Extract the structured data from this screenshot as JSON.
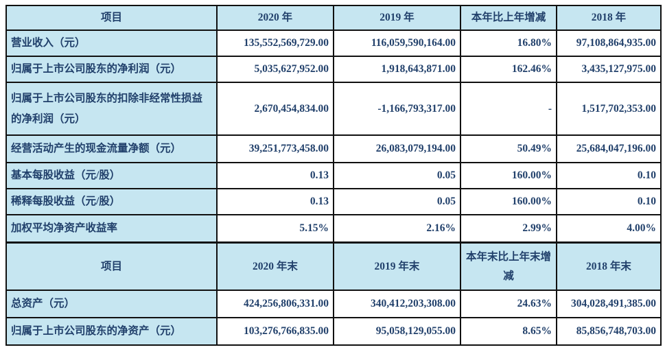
{
  "colors": {
    "cell_fill": "#c6e6f1",
    "data_fill": "#ffffff",
    "border": "#101010",
    "text": "#21406b",
    "page_background": "#ffffff"
  },
  "table1": {
    "headers": [
      "项目",
      "2020 年",
      "2019 年",
      "本年比上年增减",
      "2018 年"
    ],
    "rows": [
      {
        "cells": [
          "营业收入（元）",
          "135,552,569,729.00",
          "116,059,590,164.00",
          "16.80%",
          "97,108,864,935.00"
        ]
      },
      {
        "cells": [
          "归属于上市公司股东的净利润（元）",
          "5,035,627,952.00",
          "1,918,643,871.00",
          "162.46%",
          "3,435,127,975.00"
        ]
      },
      {
        "cells": [
          "归属于上市公司股东的扣除非经常性损益的净利润（元）",
          "2,670,454,834.00",
          "-1,166,793,317.00",
          "-",
          "1,517,702,353.00"
        ]
      },
      {
        "cells": [
          "经营活动产生的现金流量净额（元）",
          "39,251,773,458.00",
          "26,083,079,194.00",
          "50.49%",
          "25,684,047,196.00"
        ]
      },
      {
        "cells": [
          "基本每股收益（元/股）",
          "0.13",
          "0.05",
          "160.00%",
          "0.10"
        ]
      },
      {
        "cells": [
          "稀释每股收益（元/股）",
          "0.13",
          "0.05",
          "160.00%",
          "0.10"
        ]
      },
      {
        "cells": [
          "加权平均净资产收益率",
          "5.15%",
          "2.16%",
          "2.99%",
          "4.00%"
        ]
      }
    ]
  },
  "table2": {
    "headers": [
      "项目",
      "2020 年末",
      "2019 年末",
      "本年末比上年末增减",
      "2018 年末"
    ],
    "rows": [
      {
        "cells": [
          "总资产（元）",
          "424,256,806,331.00",
          "340,412,203,308.00",
          "24.63%",
          "304,028,491,385.00"
        ]
      },
      {
        "cells": [
          "归属于上市公司股东的净资产（元）",
          "103,276,766,835.00",
          "95,058,129,055.00",
          "8.65%",
          "85,856,748,703.00"
        ]
      }
    ]
  }
}
